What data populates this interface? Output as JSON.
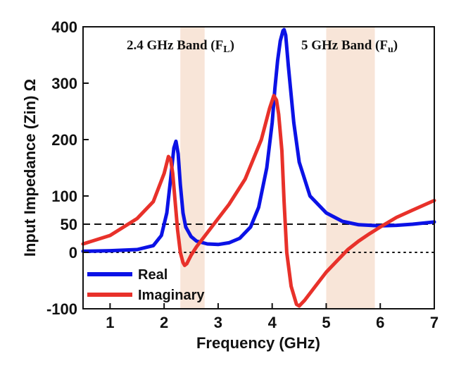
{
  "chart_data": {
    "type": "line",
    "xlabel": "Frequency (GHz)",
    "ylabel": "Input Impedance (Zin) Ω",
    "xlim": [
      0.5,
      7
    ],
    "ylim": [
      -100,
      400
    ],
    "xticks": [
      1,
      2,
      3,
      4,
      5,
      6,
      7
    ],
    "yticks": [
      -100,
      0,
      50,
      100,
      200,
      300,
      400
    ],
    "reference_lines": [
      {
        "y": 50,
        "style": "dashed"
      },
      {
        "y": 0,
        "style": "dotted"
      }
    ],
    "bands": [
      {
        "label": "2.4 GHz Band (F",
        "sub": "L",
        "close": ")",
        "range": [
          2.3,
          2.75
        ],
        "color": "#f5dccb"
      },
      {
        "label": "5 GHz Band (F",
        "sub": "u",
        "close": ")",
        "range": [
          5.0,
          5.9
        ],
        "color": "#f5dccb"
      }
    ],
    "series": [
      {
        "name": "Real",
        "color": "#0b12e6",
        "x": [
          0.5,
          1.0,
          1.5,
          1.8,
          1.95,
          2.05,
          2.12,
          2.18,
          2.22,
          2.26,
          2.3,
          2.35,
          2.4,
          2.5,
          2.6,
          2.8,
          3.0,
          3.2,
          3.4,
          3.6,
          3.75,
          3.9,
          4.0,
          4.05,
          4.1,
          4.15,
          4.2,
          4.22,
          4.25,
          4.3,
          4.4,
          4.5,
          4.7,
          5.0,
          5.3,
          5.6,
          6.0,
          6.3,
          6.6,
          7.0
        ],
        "y": [
          2,
          3,
          5,
          12,
          30,
          70,
          130,
          185,
          197,
          175,
          120,
          70,
          45,
          28,
          20,
          15,
          14,
          17,
          25,
          45,
          80,
          150,
          230,
          290,
          340,
          375,
          393,
          395,
          385,
          330,
          230,
          160,
          100,
          70,
          55,
          49,
          47,
          48,
          50,
          54
        ]
      },
      {
        "name": "Imaginary",
        "color": "#e8312a",
        "x": [
          0.5,
          1.0,
          1.5,
          1.8,
          2.0,
          2.08,
          2.12,
          2.16,
          2.2,
          2.25,
          2.3,
          2.35,
          2.38,
          2.42,
          2.5,
          2.6,
          2.8,
          3.0,
          3.2,
          3.5,
          3.8,
          3.95,
          4.03,
          4.08,
          4.12,
          4.18,
          4.22,
          4.27,
          4.35,
          4.45,
          4.5,
          4.6,
          4.8,
          5.0,
          5.2,
          5.4,
          5.6,
          5.8,
          6.0,
          6.3,
          6.6,
          7.0
        ],
        "y": [
          15,
          30,
          60,
          90,
          140,
          170,
          165,
          140,
          95,
          40,
          0,
          -18,
          -23,
          -20,
          -5,
          10,
          35,
          60,
          85,
          130,
          200,
          255,
          278,
          270,
          245,
          180,
          90,
          0,
          -60,
          -92,
          -95,
          -85,
          -60,
          -35,
          -15,
          5,
          20,
          33,
          45,
          62,
          75,
          92
        ]
      }
    ],
    "legend": {
      "placement": "bottom-left",
      "entries": [
        "Real",
        "Imaginary"
      ]
    }
  }
}
